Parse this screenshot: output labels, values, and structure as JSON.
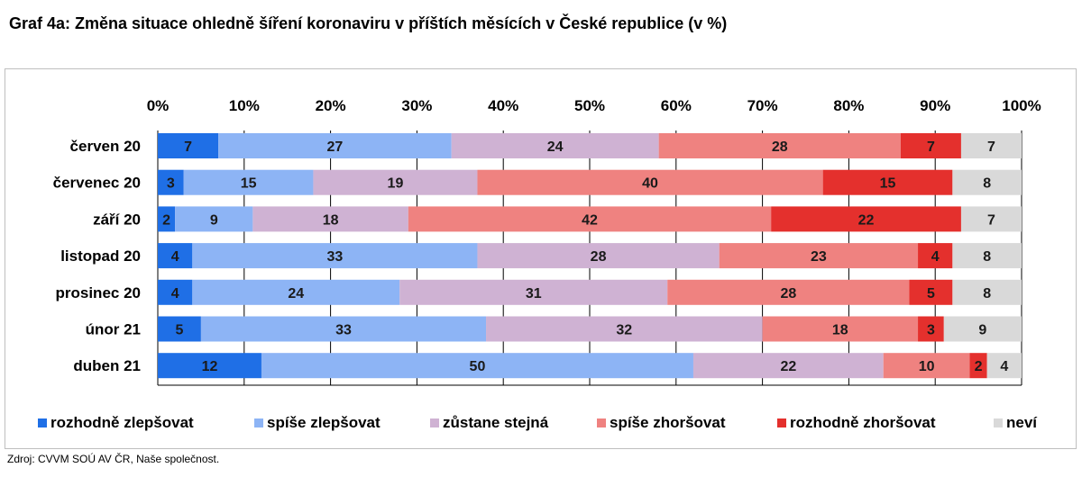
{
  "title": "Graf 4a: Změna situace ohledně šíření koronaviru v příštích měsících v České republice (v %)",
  "source": "Zdroj: CVVM SOÚ AV ČR, Naše společnost.",
  "chart_data": {
    "type": "bar",
    "orientation": "horizontal",
    "stacked": true,
    "title": "Graf 4a: Změna situace ohledně šíření koronaviru v příštích měsících v České republice (v %)",
    "xlabel": "",
    "ylabel": "",
    "xlim": [
      0,
      100
    ],
    "x_ticks": [
      "0%",
      "10%",
      "20%",
      "30%",
      "40%",
      "50%",
      "60%",
      "70%",
      "80%",
      "90%",
      "100%"
    ],
    "grid": true,
    "legend_position": "bottom",
    "categories": [
      "červen 20",
      "červenec 20",
      "září 20",
      "listopad 20",
      "prosinec 20",
      "únor 21",
      "duben 21"
    ],
    "series": [
      {
        "name": "rozhodně zlepšovat",
        "color": "#1f6fe6",
        "values": [
          7,
          3,
          2,
          4,
          4,
          5,
          12
        ]
      },
      {
        "name": "spíše zlepšovat",
        "color": "#8db4f5",
        "values": [
          27,
          15,
          9,
          33,
          24,
          33,
          50
        ]
      },
      {
        "name": "zůstane stejná",
        "color": "#cfb2d3",
        "values": [
          24,
          19,
          18,
          28,
          31,
          32,
          22
        ]
      },
      {
        "name": "spíše zhoršovat",
        "color": "#ef8280",
        "values": [
          28,
          40,
          42,
          23,
          28,
          18,
          10
        ]
      },
      {
        "name": "rozhodně zhoršovat",
        "color": "#e4302d",
        "values": [
          7,
          15,
          22,
          4,
          5,
          3,
          2
        ]
      },
      {
        "name": "neví",
        "color": "#d9d9d9",
        "values": [
          7,
          8,
          7,
          8,
          8,
          9,
          4
        ]
      }
    ]
  }
}
